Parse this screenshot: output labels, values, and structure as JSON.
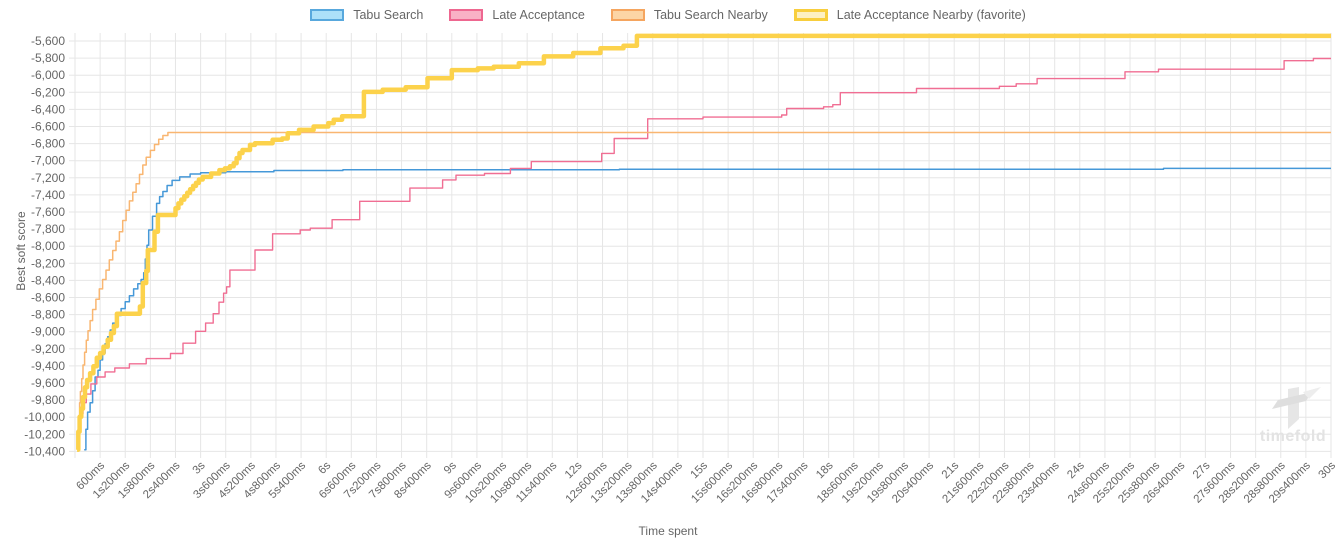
{
  "legend": {
    "items": [
      {
        "label": "Tabu Search",
        "fill": "#ace0f9",
        "border": "#58a8dd"
      },
      {
        "label": "Late Acceptance",
        "fill": "#f9b1c5",
        "border": "#ee6790"
      },
      {
        "label": "Tabu Search Nearby",
        "fill": "#fcd5a5",
        "border": "#f5a55f"
      },
      {
        "label": "Late Acceptance Nearby (favorite)",
        "fill": "#fdf0c2",
        "border": "#f8ce3d",
        "thick": true
      }
    ]
  },
  "watermark": {
    "text": "timefold"
  },
  "chart_data": {
    "type": "line",
    "step": true,
    "title": "",
    "xlabel": "Time spent",
    "ylabel": "Best soft score",
    "x_unit": "seconds",
    "xlim": [
      0,
      30
    ],
    "ylim": [
      -10400,
      -5500
    ],
    "grid": true,
    "legend_position": "top",
    "grid_color": "#e6e6e6",
    "tick_text_color": "#666666",
    "y_ticks": [
      "-5,600",
      "-5,800",
      "-6,000",
      "-6,200",
      "-6,400",
      "-6,600",
      "-6,800",
      "-7,000",
      "-7,200",
      "-7,400",
      "-7,600",
      "-7,800",
      "-8,000",
      "-8,200",
      "-8,400",
      "-8,600",
      "-8,800",
      "-9,000",
      "-9,200",
      "-9,400",
      "-9,600",
      "-9,800",
      "-10,000",
      "-10,200",
      "-10,400"
    ],
    "y_tick_values": [
      -5600,
      -5800,
      -6000,
      -6200,
      -6400,
      -6600,
      -6800,
      -7000,
      -7200,
      -7400,
      -7600,
      -7800,
      -8000,
      -8200,
      -8400,
      -8600,
      -8800,
      -9000,
      -9200,
      -9400,
      -9600,
      -9800,
      -10000,
      -10200,
      -10400
    ],
    "x_ticks": [
      "600ms",
      "1s200ms",
      "1s800ms",
      "2s400ms",
      "3s",
      "3s600ms",
      "4s200ms",
      "4s800ms",
      "5s400ms",
      "6s",
      "6s600ms",
      "7s200ms",
      "7s800ms",
      "8s400ms",
      "9s",
      "9s600ms",
      "10s200ms",
      "10s800ms",
      "11s400ms",
      "12s",
      "12s600ms",
      "13s200ms",
      "13s800ms",
      "14s400ms",
      "15s",
      "15s600ms",
      "16s200ms",
      "16s800ms",
      "17s400ms",
      "18s",
      "18s600ms",
      "19s200ms",
      "19s800ms",
      "20s400ms",
      "21s",
      "21s600ms",
      "22s200ms",
      "22s800ms",
      "23s400ms",
      "24s",
      "24s600ms",
      "25s200ms",
      "25s800ms",
      "26s400ms",
      "27s",
      "27s600ms",
      "28s200ms",
      "28s800ms",
      "29s400ms",
      "30s"
    ],
    "x_tick_seconds": [
      0.6,
      1.2,
      1.8,
      2.4,
      3,
      3.6,
      4.2,
      4.8,
      5.4,
      6,
      6.6,
      7.2,
      7.8,
      8.4,
      9,
      9.6,
      10.2,
      10.8,
      11.4,
      12,
      12.6,
      13.2,
      13.8,
      14.4,
      15,
      15.6,
      16.2,
      16.8,
      17.4,
      18,
      18.6,
      19.2,
      19.8,
      20.4,
      21,
      21.6,
      22.2,
      22.8,
      23.4,
      24,
      24.6,
      25.2,
      25.8,
      26.4,
      27,
      27.6,
      28.2,
      28.8,
      29.4,
      30
    ],
    "series": [
      {
        "name": "Tabu Search",
        "color": "#4598d8",
        "width": 1.5,
        "final_score": -7090,
        "points": [
          [
            0.22,
            -10380
          ],
          [
            0.26,
            -10140
          ],
          [
            0.3,
            -9940
          ],
          [
            0.36,
            -9830
          ],
          [
            0.42,
            -9690
          ],
          [
            0.48,
            -9530
          ],
          [
            0.55,
            -9450
          ],
          [
            0.6,
            -9330
          ],
          [
            0.66,
            -9250
          ],
          [
            0.72,
            -9140
          ],
          [
            0.78,
            -9060
          ],
          [
            0.84,
            -8980
          ],
          [
            0.9,
            -8900
          ],
          [
            1.0,
            -8810
          ],
          [
            1.1,
            -8730
          ],
          [
            1.2,
            -8650
          ],
          [
            1.3,
            -8580
          ],
          [
            1.4,
            -8500
          ],
          [
            1.5,
            -8440
          ],
          [
            1.58,
            -8390
          ],
          [
            1.64,
            -8310
          ],
          [
            1.68,
            -8150
          ],
          [
            1.72,
            -7990
          ],
          [
            1.76,
            -7810
          ],
          [
            1.85,
            -7650
          ],
          [
            1.95,
            -7500
          ],
          [
            2.02,
            -7420
          ],
          [
            2.1,
            -7360
          ],
          [
            2.2,
            -7290
          ],
          [
            2.32,
            -7230
          ],
          [
            2.5,
            -7190
          ],
          [
            2.75,
            -7155
          ],
          [
            3.0,
            -7140
          ],
          [
            3.6,
            -7130
          ],
          [
            4.75,
            -7115
          ],
          [
            6.4,
            -7105
          ],
          [
            13.0,
            -7100
          ],
          [
            26.0,
            -7090
          ],
          [
            30,
            -7090
          ]
        ]
      },
      {
        "name": "Late Acceptance",
        "color": "#f06e93",
        "width": 1.4,
        "final_score": -5805,
        "points": [
          [
            0.05,
            -10350
          ],
          [
            0.09,
            -10060
          ],
          [
            0.13,
            -9960
          ],
          [
            0.19,
            -9830
          ],
          [
            0.27,
            -9730
          ],
          [
            0.38,
            -9610
          ],
          [
            0.52,
            -9530
          ],
          [
            0.72,
            -9470
          ],
          [
            0.95,
            -9425
          ],
          [
            1.3,
            -9375
          ],
          [
            1.7,
            -9315
          ],
          [
            2.28,
            -9255
          ],
          [
            2.58,
            -9135
          ],
          [
            2.88,
            -8995
          ],
          [
            3.12,
            -8900
          ],
          [
            3.3,
            -8790
          ],
          [
            3.44,
            -8655
          ],
          [
            3.55,
            -8550
          ],
          [
            3.62,
            -8475
          ],
          [
            3.7,
            -8280
          ],
          [
            4.3,
            -8045
          ],
          [
            4.72,
            -7855
          ],
          [
            5.38,
            -7810
          ],
          [
            5.62,
            -7790
          ],
          [
            6.14,
            -7690
          ],
          [
            6.8,
            -7475
          ],
          [
            8.0,
            -7320
          ],
          [
            8.78,
            -7225
          ],
          [
            9.1,
            -7170
          ],
          [
            9.78,
            -7150
          ],
          [
            10.4,
            -7090
          ],
          [
            10.9,
            -7010
          ],
          [
            12.58,
            -6915
          ],
          [
            12.88,
            -6740
          ],
          [
            13.68,
            -6510
          ],
          [
            15.0,
            -6490
          ],
          [
            16.88,
            -6465
          ],
          [
            17.0,
            -6390
          ],
          [
            17.88,
            -6370
          ],
          [
            18.1,
            -6345
          ],
          [
            18.28,
            -6205
          ],
          [
            20.1,
            -6155
          ],
          [
            22.08,
            -6130
          ],
          [
            22.48,
            -6100
          ],
          [
            22.98,
            -6040
          ],
          [
            25.08,
            -5960
          ],
          [
            25.88,
            -5930
          ],
          [
            28.88,
            -5830
          ],
          [
            29.58,
            -5805
          ],
          [
            30,
            -5805
          ]
        ]
      },
      {
        "name": "Tabu Search Nearby",
        "color": "#f9b671",
        "width": 1.5,
        "final_score": -6670,
        "points": [
          [
            0.05,
            -10380
          ],
          [
            0.07,
            -10150
          ],
          [
            0.09,
            -10020
          ],
          [
            0.11,
            -9830
          ],
          [
            0.13,
            -9700
          ],
          [
            0.16,
            -9550
          ],
          [
            0.19,
            -9390
          ],
          [
            0.23,
            -9240
          ],
          [
            0.27,
            -9100
          ],
          [
            0.31,
            -8990
          ],
          [
            0.36,
            -8870
          ],
          [
            0.42,
            -8740
          ],
          [
            0.5,
            -8620
          ],
          [
            0.58,
            -8500
          ],
          [
            0.66,
            -8390
          ],
          [
            0.74,
            -8280
          ],
          [
            0.82,
            -8160
          ],
          [
            0.9,
            -8050
          ],
          [
            0.98,
            -7940
          ],
          [
            1.06,
            -7830
          ],
          [
            1.14,
            -7700
          ],
          [
            1.22,
            -7580
          ],
          [
            1.3,
            -7470
          ],
          [
            1.38,
            -7370
          ],
          [
            1.46,
            -7270
          ],
          [
            1.54,
            -7160
          ],
          [
            1.62,
            -7050
          ],
          [
            1.7,
            -6960
          ],
          [
            1.8,
            -6880
          ],
          [
            1.9,
            -6810
          ],
          [
            2.0,
            -6750
          ],
          [
            2.1,
            -6705
          ],
          [
            2.22,
            -6670
          ],
          [
            30,
            -6670
          ]
        ]
      },
      {
        "name": "Late Acceptance Nearby (favorite)",
        "color": "#fcd24b",
        "width": 4.5,
        "final_score": -5540,
        "points": [
          [
            0.05,
            -10380
          ],
          [
            0.08,
            -10170
          ],
          [
            0.11,
            -9995
          ],
          [
            0.15,
            -9900
          ],
          [
            0.19,
            -9765
          ],
          [
            0.24,
            -9650
          ],
          [
            0.29,
            -9565
          ],
          [
            0.36,
            -9485
          ],
          [
            0.44,
            -9405
          ],
          [
            0.52,
            -9305
          ],
          [
            0.6,
            -9250
          ],
          [
            0.68,
            -9175
          ],
          [
            0.78,
            -9095
          ],
          [
            0.86,
            -9015
          ],
          [
            0.93,
            -8935
          ],
          [
            1.0,
            -8790
          ],
          [
            1.55,
            -8705
          ],
          [
            1.62,
            -8430
          ],
          [
            1.7,
            -8290
          ],
          [
            1.74,
            -8045
          ],
          [
            1.9,
            -7830
          ],
          [
            1.98,
            -7635
          ],
          [
            2.4,
            -7555
          ],
          [
            2.47,
            -7500
          ],
          [
            2.54,
            -7455
          ],
          [
            2.61,
            -7415
          ],
          [
            2.68,
            -7375
          ],
          [
            2.75,
            -7335
          ],
          [
            2.82,
            -7295
          ],
          [
            2.89,
            -7260
          ],
          [
            2.96,
            -7220
          ],
          [
            3.05,
            -7190
          ],
          [
            3.25,
            -7150
          ],
          [
            3.45,
            -7110
          ],
          [
            3.58,
            -7090
          ],
          [
            3.7,
            -7065
          ],
          [
            3.79,
            -7030
          ],
          [
            3.86,
            -6970
          ],
          [
            3.93,
            -6910
          ],
          [
            4.0,
            -6875
          ],
          [
            4.18,
            -6815
          ],
          [
            4.3,
            -6795
          ],
          [
            4.72,
            -6755
          ],
          [
            4.95,
            -6740
          ],
          [
            5.08,
            -6680
          ],
          [
            5.35,
            -6640
          ],
          [
            5.7,
            -6600
          ],
          [
            6.05,
            -6560
          ],
          [
            6.18,
            -6520
          ],
          [
            6.38,
            -6480
          ],
          [
            6.9,
            -6195
          ],
          [
            7.35,
            -6170
          ],
          [
            7.9,
            -6140
          ],
          [
            8.42,
            -6035
          ],
          [
            9.0,
            -5940
          ],
          [
            9.62,
            -5920
          ],
          [
            10.0,
            -5900
          ],
          [
            10.6,
            -5860
          ],
          [
            11.2,
            -5780
          ],
          [
            11.9,
            -5740
          ],
          [
            12.55,
            -5685
          ],
          [
            13.1,
            -5655
          ],
          [
            13.42,
            -5540
          ],
          [
            30,
            -5540
          ]
        ]
      }
    ]
  }
}
